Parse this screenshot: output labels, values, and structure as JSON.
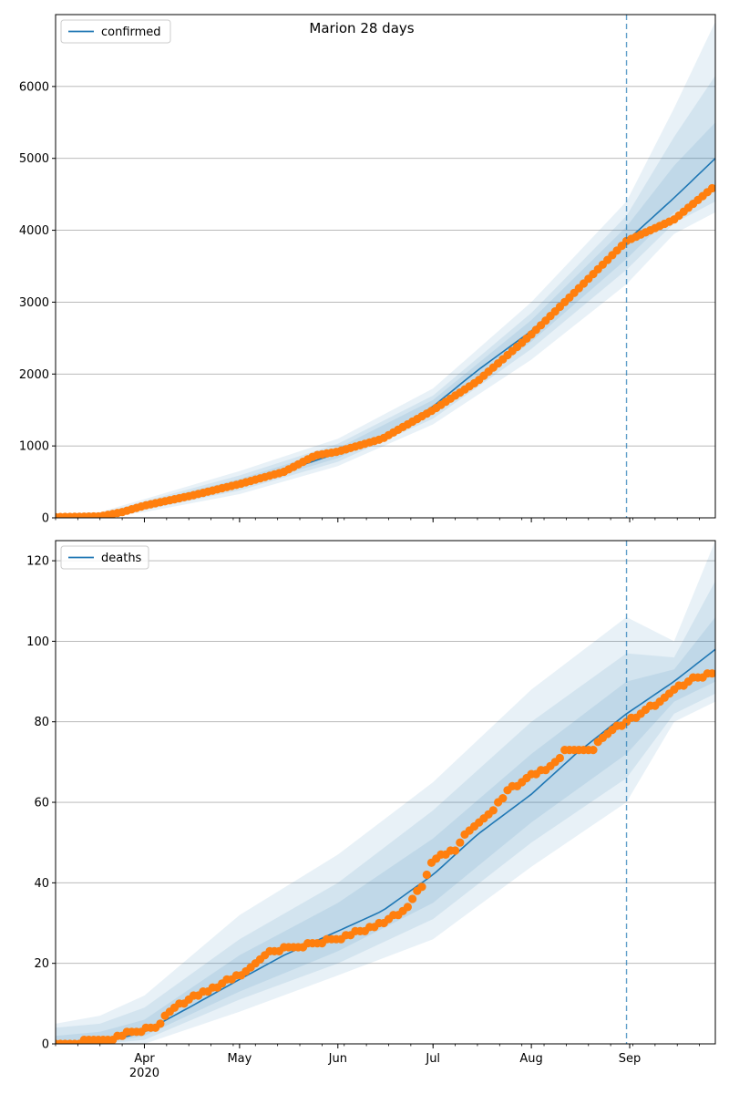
{
  "figure": {
    "title": "Marion 28 days"
  },
  "colors": {
    "model": "#1f77b4",
    "observed": "#ff7f0e",
    "band": "#1f77b4",
    "grid": "#b0b0b0",
    "forecast_line": "#1f77b4"
  },
  "chart_data": [
    {
      "type": "line",
      "title": "Marion 28 days",
      "xlabel": "",
      "ylabel": "",
      "xlim": [
        "2020-03-04",
        "2020-09-28"
      ],
      "ylim": [
        0,
        7000
      ],
      "yticks": [
        0,
        1000,
        2000,
        3000,
        4000,
        5000,
        6000
      ],
      "xticks": [
        {
          "date": "2020-04-01",
          "label": "Apr",
          "sublabel": ""
        },
        {
          "date": "2020-05-01",
          "label": "May",
          "sublabel": ""
        },
        {
          "date": "2020-06-01",
          "label": "Jun",
          "sublabel": ""
        },
        {
          "date": "2020-07-01",
          "label": "Jul",
          "sublabel": ""
        },
        {
          "date": "2020-08-01",
          "label": "Aug",
          "sublabel": ""
        },
        {
          "date": "2020-09-01",
          "label": "Sep",
          "sublabel": ""
        }
      ],
      "grid": "y",
      "legend": {
        "placement": "top-left",
        "label": "confirmed"
      },
      "forecast_start": "2020-08-31",
      "series": [
        {
          "name": "confirmed",
          "kind": "model",
          "points": [
            [
              "2020-03-04",
              20
            ],
            [
              "2020-03-18",
              30
            ],
            [
              "2020-03-25",
              90
            ],
            [
              "2020-04-01",
              180
            ],
            [
              "2020-04-15",
              300
            ],
            [
              "2020-05-01",
              480
            ],
            [
              "2020-05-15",
              650
            ],
            [
              "2020-06-01",
              900
            ],
            [
              "2020-06-15",
              1100
            ],
            [
              "2020-07-01",
              1550
            ],
            [
              "2020-07-15",
              2050
            ],
            [
              "2020-08-01",
              2600
            ],
            [
              "2020-08-15",
              3150
            ],
            [
              "2020-08-31",
              3850
            ],
            [
              "2020-09-15",
              4450
            ],
            [
              "2020-09-28",
              5000
            ]
          ]
        },
        {
          "name": "observed",
          "kind": "observed",
          "points": [
            [
              "2020-03-04",
              10
            ],
            [
              "2020-03-18",
              20
            ],
            [
              "2020-03-25",
              80
            ],
            [
              "2020-04-01",
              170
            ],
            [
              "2020-04-15",
              300
            ],
            [
              "2020-05-01",
              470
            ],
            [
              "2020-05-15",
              640
            ],
            [
              "2020-05-25",
              870
            ],
            [
              "2020-06-01",
              920
            ],
            [
              "2020-06-15",
              1100
            ],
            [
              "2020-07-01",
              1500
            ],
            [
              "2020-07-15",
              1900
            ],
            [
              "2020-08-01",
              2550
            ],
            [
              "2020-08-15",
              3150
            ],
            [
              "2020-08-31",
              3850
            ],
            [
              "2020-09-15",
              4150
            ],
            [
              "2020-09-28",
              4620
            ]
          ]
        }
      ],
      "bands": [
        {
          "level": "outer",
          "points": [
            [
              "2020-03-04",
              0,
              60
            ],
            [
              "2020-03-18",
              0,
              80
            ],
            [
              "2020-04-01",
              80,
              260
            ],
            [
              "2020-05-01",
              330,
              650
            ],
            [
              "2020-06-01",
              720,
              1100
            ],
            [
              "2020-07-01",
              1300,
              1800
            ],
            [
              "2020-08-01",
              2200,
              3000
            ],
            [
              "2020-08-31",
              3250,
              4400
            ],
            [
              "2020-09-15",
              3950,
              5700
            ],
            [
              "2020-09-28",
              4250,
              6900
            ]
          ]
        },
        {
          "level": "middle",
          "points": [
            [
              "2020-03-04",
              5,
              40
            ],
            [
              "2020-03-18",
              10,
              55
            ],
            [
              "2020-04-01",
              110,
              230
            ],
            [
              "2020-05-01",
              380,
              590
            ],
            [
              "2020-06-01",
              780,
              1030
            ],
            [
              "2020-07-01",
              1380,
              1700
            ],
            [
              "2020-08-01",
              2350,
              2850
            ],
            [
              "2020-08-31",
              3450,
              4200
            ],
            [
              "2020-09-15",
              4100,
              5300
            ],
            [
              "2020-09-28",
              4400,
              6150
            ]
          ]
        },
        {
          "level": "inner",
          "points": [
            [
              "2020-03-04",
              10,
              30
            ],
            [
              "2020-03-18",
              18,
              42
            ],
            [
              "2020-04-01",
              140,
              210
            ],
            [
              "2020-05-01",
              420,
              540
            ],
            [
              "2020-06-01",
              830,
              970
            ],
            [
              "2020-07-01",
              1450,
              1640
            ],
            [
              "2020-08-01",
              2450,
              2750
            ],
            [
              "2020-08-31",
              3600,
              4050
            ],
            [
              "2020-09-15",
              4250,
              4900
            ],
            [
              "2020-09-28",
              4550,
              5500
            ]
          ]
        }
      ]
    },
    {
      "type": "line",
      "title": "",
      "xlabel": "",
      "ylabel": "",
      "xlim": [
        "2020-03-04",
        "2020-09-28"
      ],
      "ylim": [
        0,
        125
      ],
      "yticks": [
        0,
        20,
        40,
        60,
        80,
        100,
        120
      ],
      "xticks": [
        {
          "date": "2020-04-01",
          "label": "Apr",
          "sublabel": "2020"
        },
        {
          "date": "2020-05-01",
          "label": "May",
          "sublabel": ""
        },
        {
          "date": "2020-06-01",
          "label": "Jun",
          "sublabel": ""
        },
        {
          "date": "2020-07-01",
          "label": "Jul",
          "sublabel": ""
        },
        {
          "date": "2020-08-01",
          "label": "Aug",
          "sublabel": ""
        },
        {
          "date": "2020-09-01",
          "label": "Sep",
          "sublabel": ""
        }
      ],
      "grid": "y",
      "legend": {
        "placement": "top-left",
        "label": "deaths"
      },
      "forecast_start": "2020-08-31",
      "series": [
        {
          "name": "deaths",
          "kind": "model",
          "points": [
            [
              "2020-03-04",
              0
            ],
            [
              "2020-03-18",
              1
            ],
            [
              "2020-03-25",
              1.5
            ],
            [
              "2020-04-01",
              3
            ],
            [
              "2020-04-15",
              9
            ],
            [
              "2020-05-01",
              16
            ],
            [
              "2020-05-15",
              22
            ],
            [
              "2020-06-01",
              28
            ],
            [
              "2020-06-15",
              33
            ],
            [
              "2020-07-01",
              42
            ],
            [
              "2020-07-15",
              52
            ],
            [
              "2020-08-01",
              62
            ],
            [
              "2020-08-15",
              72
            ],
            [
              "2020-08-31",
              82
            ],
            [
              "2020-09-15",
              90
            ],
            [
              "2020-09-28",
              98
            ]
          ]
        },
        {
          "name": "observed",
          "kind": "observed",
          "points": [
            [
              "2020-03-04",
              0
            ],
            [
              "2020-03-22",
              1
            ],
            [
              "2020-03-28",
              3
            ],
            [
              "2020-04-05",
              4
            ],
            [
              "2020-04-10",
              9
            ],
            [
              "2020-04-20",
              13
            ],
            [
              "2020-05-01",
              17
            ],
            [
              "2020-05-08",
              21
            ],
            [
              "2020-05-10",
              23
            ],
            [
              "2020-05-20",
              24
            ],
            [
              "2020-05-25",
              25
            ],
            [
              "2020-06-01",
              26
            ],
            [
              "2020-06-08",
              28
            ],
            [
              "2020-06-15",
              30
            ],
            [
              "2020-06-22",
              33
            ],
            [
              "2020-06-28",
              40
            ],
            [
              "2020-07-01",
              46
            ],
            [
              "2020-07-08",
              48
            ],
            [
              "2020-07-12",
              53
            ],
            [
              "2020-07-20",
              58
            ],
            [
              "2020-07-25",
              63
            ],
            [
              "2020-08-01",
              67
            ],
            [
              "2020-08-08",
              69
            ],
            [
              "2020-08-12",
              73
            ],
            [
              "2020-08-20",
              73
            ],
            [
              "2020-08-25",
              77
            ],
            [
              "2020-08-31",
              80
            ],
            [
              "2020-09-05",
              82
            ],
            [
              "2020-09-10",
              85
            ],
            [
              "2020-09-15",
              88
            ],
            [
              "2020-09-22",
              91
            ],
            [
              "2020-09-28",
              92
            ]
          ]
        }
      ],
      "bands": [
        {
          "level": "outer",
          "points": [
            [
              "2020-03-04",
              0,
              5
            ],
            [
              "2020-03-18",
              0,
              7
            ],
            [
              "2020-04-01",
              0,
              12
            ],
            [
              "2020-05-01",
              8,
              32
            ],
            [
              "2020-06-01",
              17,
              47
            ],
            [
              "2020-07-01",
              26,
              65
            ],
            [
              "2020-08-01",
              44,
              88
            ],
            [
              "2020-08-31",
              60,
              106
            ],
            [
              "2020-09-15",
              80,
              100
            ],
            [
              "2020-09-28",
              85,
              125
            ]
          ]
        },
        {
          "level": "middle",
          "points": [
            [
              "2020-03-04",
              0,
              4
            ],
            [
              "2020-03-18",
              0,
              5
            ],
            [
              "2020-04-01",
              1,
              9
            ],
            [
              "2020-05-01",
              11,
              26
            ],
            [
              "2020-06-01",
              20,
              40
            ],
            [
              "2020-07-01",
              31,
              58
            ],
            [
              "2020-08-01",
              50,
              80
            ],
            [
              "2020-08-31",
              66,
              97
            ],
            [
              "2020-09-15",
              82,
              96
            ],
            [
              "2020-09-28",
              87,
              115
            ]
          ]
        },
        {
          "level": "inner",
          "points": [
            [
              "2020-03-04",
              0,
              2
            ],
            [
              "2020-03-18",
              0,
              3
            ],
            [
              "2020-04-01",
              2,
              6
            ],
            [
              "2020-05-01",
              13,
              22
            ],
            [
              "2020-06-01",
              23,
              35
            ],
            [
              "2020-07-01",
              35,
              51
            ],
            [
              "2020-08-01",
              55,
              72
            ],
            [
              "2020-08-31",
              72,
              90
            ],
            [
              "2020-09-15",
              85,
              93
            ],
            [
              "2020-09-28",
              90,
              106
            ]
          ]
        }
      ]
    }
  ]
}
